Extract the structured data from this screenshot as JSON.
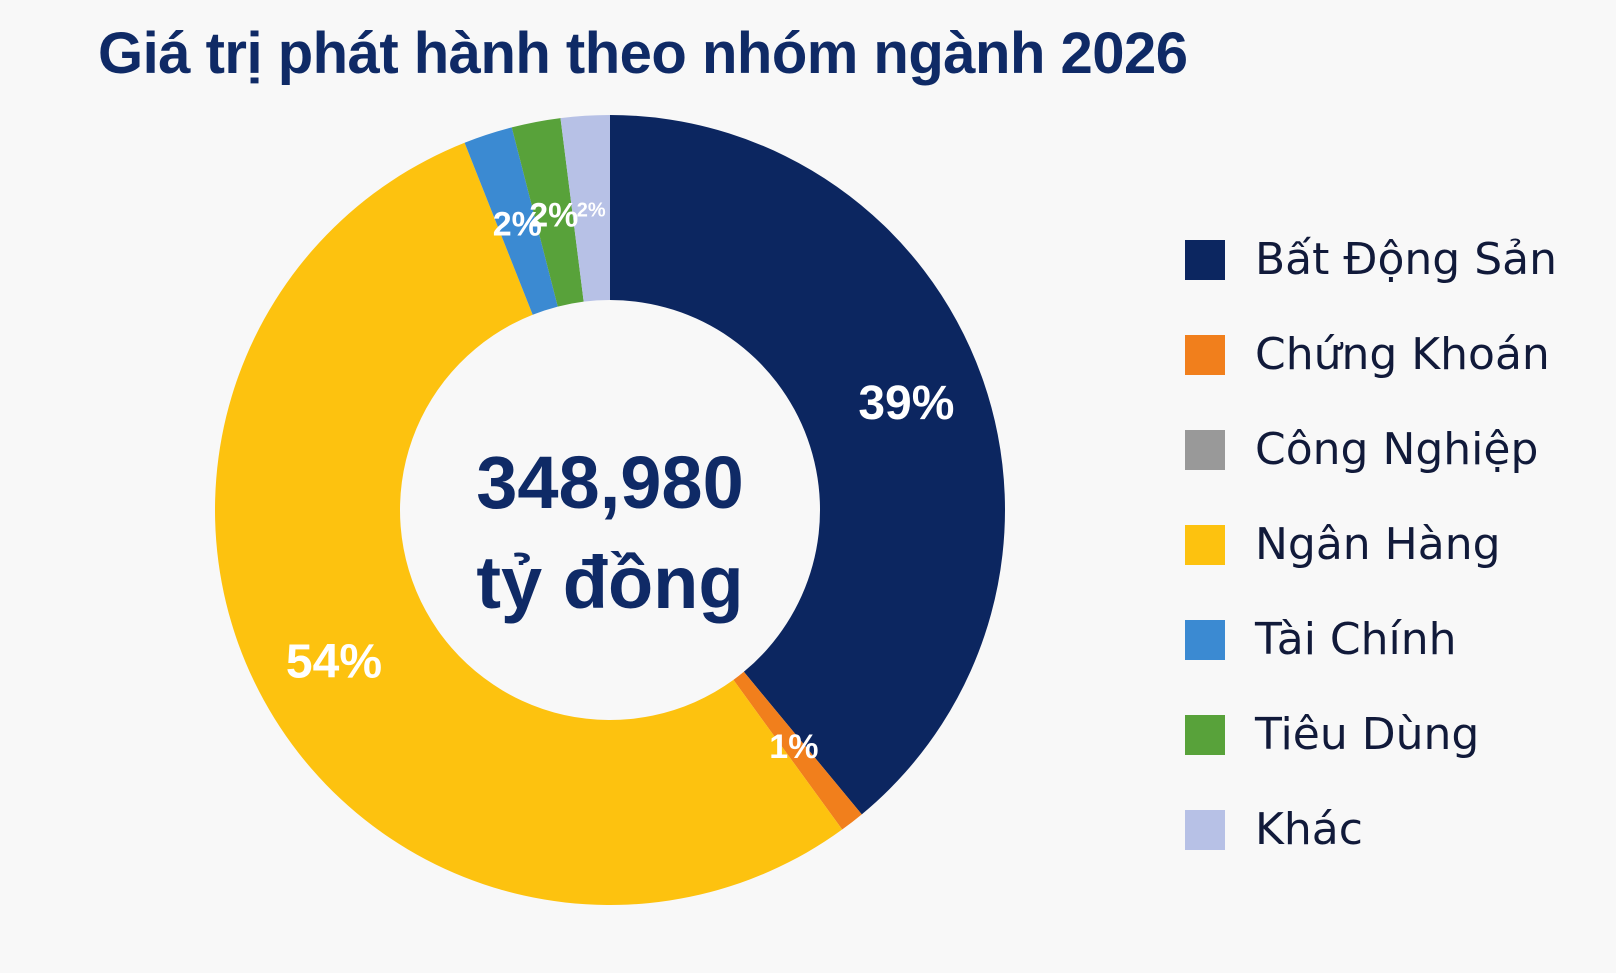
{
  "chart_data": {
    "type": "pie",
    "donut": true,
    "title": "Giá trị phát hành theo nhóm ngành 2026",
    "center_value": "348,980",
    "center_unit": "tỷ đồng",
    "start": "top, clockwise",
    "legend_position": "right",
    "slices": [
      {
        "name": "Bất Động Sản",
        "value": 39,
        "label": "39%",
        "color": "#0c2660"
      },
      {
        "name": "Chứng Khoán",
        "value": 1,
        "label": "1%",
        "color": "#f17f1c"
      },
      {
        "name": "Ngân Hàng",
        "value": 54,
        "label": "54%",
        "color": "#fdc20f"
      },
      {
        "name": "Tài Chính",
        "value": 2,
        "label": "2%",
        "color": "#3b8ad2"
      },
      {
        "name": "Tiêu Dùng",
        "value": 2,
        "label": "2%",
        "color": "#58a23a"
      },
      {
        "name": "Khác",
        "value": 2,
        "label": "2%",
        "color": "#b7c1e6"
      }
    ],
    "legend": [
      {
        "name": "Bất Động Sản",
        "color": "#0c2660"
      },
      {
        "name": "Chứng Khoán",
        "color": "#f17f1c"
      },
      {
        "name": "Công Nghiệp",
        "color": "#999999"
      },
      {
        "name": "Ngân Hàng",
        "color": "#fdc20f"
      },
      {
        "name": "Tài Chính",
        "color": "#3b8ad2"
      },
      {
        "name": "Tiêu Dùng",
        "color": "#58a23a"
      },
      {
        "name": "Khác",
        "color": "#b7c1e6"
      }
    ]
  }
}
